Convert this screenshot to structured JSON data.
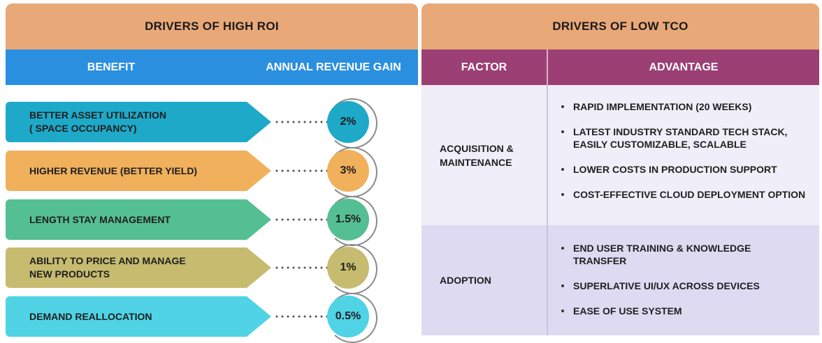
{
  "roi": {
    "title": "DRIVERS OF HIGH ROI",
    "col_benefit": "BENEFIT",
    "col_gain": "ANNUAL REVENUE GAIN",
    "rows": [
      {
        "benefit": "BETTER ASSET UTILIZATION\n( SPACE OCCUPANCY)",
        "gain": "2%",
        "color": "#1ea9c9"
      },
      {
        "benefit": "HIGHER REVENUE (BETTER YIELD)",
        "gain": "3%",
        "color": "#f1b05c"
      },
      {
        "benefit": "LENGTH STAY MANAGEMENT",
        "gain": "1.5%",
        "color": "#54bf93"
      },
      {
        "benefit": "ABILITY TO PRICE AND MANAGE\nNEW PRODUCTS",
        "gain": "1%",
        "color": "#c6bb6f"
      },
      {
        "benefit": "DEMAND REALLOCATION",
        "gain": "0.5%",
        "color": "#4fd3e5"
      }
    ]
  },
  "tco": {
    "title": "DRIVERS OF LOW TCO",
    "col_factor": "FACTOR",
    "col_advantage": "ADVANTAGE",
    "sections": [
      {
        "factor": "ACQUISITION &\nMAINTENANCE",
        "bg": "#f0eef8",
        "advantages": [
          "RAPID IMPLEMENTATION (20 WEEKS)",
          "LATEST INDUSTRY STANDARD TECH STACK, EASILY CUSTOMIZABLE, SCALABLE",
          "LOWER COSTS IN PRODUCTION SUPPORT",
          "COST-EFFECTIVE CLOUD DEPLOYMENT OPTION"
        ]
      },
      {
        "factor": "ADOPTION",
        "bg": "#dedaf2",
        "advantages": [
          "END USER TRAINING & KNOWLEDGE TRANSFER",
          "SUPERLATIVE UI/UX ACROSS DEVICES",
          "EASE OF USE SYSTEM"
        ]
      }
    ]
  }
}
